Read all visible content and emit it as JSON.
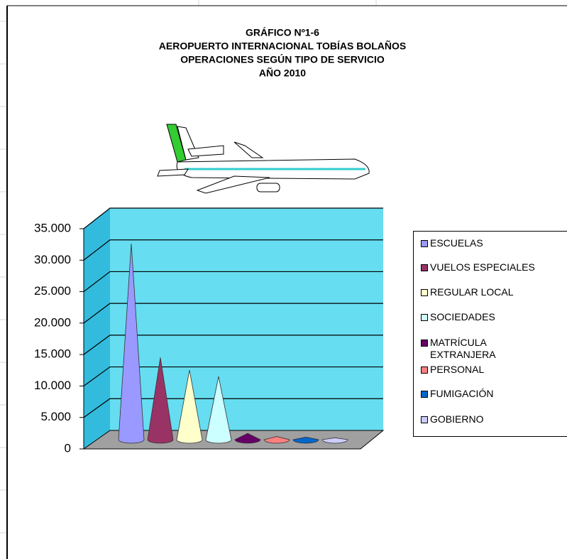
{
  "chart_data": {
    "type": "cone",
    "title_lines": [
      "GRÁFICO Nº1-6",
      "AEROPUERTO INTERNACIONAL TOBÍAS BOLAÑOS",
      "OPERACIONES SEGÚN TIPO DE SERVICIO",
      "AÑO 2010"
    ],
    "series": [
      {
        "name": "ESCUELAS",
        "color": "#9999ff",
        "values": [
          31000
        ]
      },
      {
        "name": "VUELOS ESPECIALES",
        "color": "#993366",
        "values": [
          13000
        ]
      },
      {
        "name": "REGULAR LOCAL",
        "color": "#ffffcc",
        "values": [
          11000
        ]
      },
      {
        "name": "SOCIEDADES",
        "color": "#ccffff",
        "values": [
          10000
        ]
      },
      {
        "name": "MATRÍCULA EXTRANJERA",
        "color": "#660066",
        "values": [
          1000
        ]
      },
      {
        "name": "PERSONAL",
        "color": "#ff8080",
        "values": [
          500
        ]
      },
      {
        "name": "FUMIGACIÓN",
        "color": "#0066cc",
        "values": [
          400
        ]
      },
      {
        "name": "GOBIERNO",
        "color": "#ccccff",
        "values": [
          300
        ]
      }
    ],
    "ylim": [
      0,
      35000
    ],
    "yticks": [
      0,
      {
        "value": 5000,
        "label": "5.000"
      },
      {
        "value": 10000,
        "label": "10.000"
      },
      {
        "value": 15000,
        "label": "15.000"
      },
      {
        "value": 20000,
        "label": "20.000"
      },
      {
        "value": 25000,
        "label": "25.000"
      },
      {
        "value": 30000,
        "label": "30.000"
      },
      {
        "value": 35000,
        "label": "35.000"
      }
    ],
    "grid": true,
    "legend": "right"
  }
}
